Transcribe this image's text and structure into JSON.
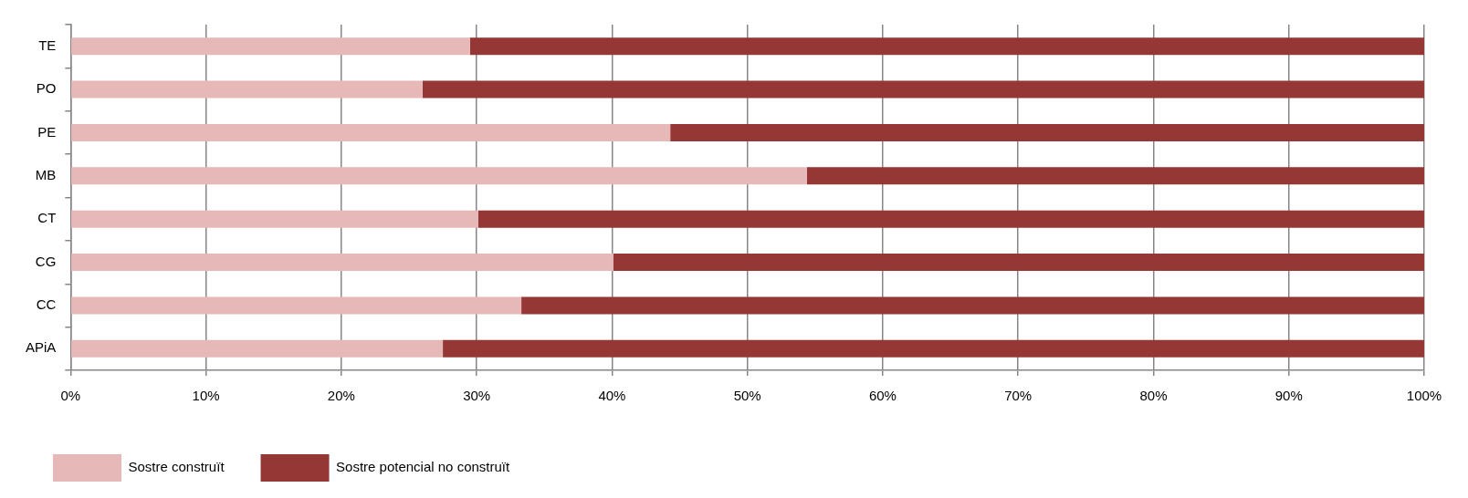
{
  "chart_data": {
    "type": "bar",
    "orientation": "horizontal",
    "stacked": true,
    "categories": [
      "TE",
      "PO",
      "PE",
      "MB",
      "CT",
      "CG",
      "CC",
      "APiA"
    ],
    "series": [
      {
        "name": "Sostre construït",
        "color": "#e6b9b8",
        "values": [
          29.5,
          26.0,
          44.3,
          54.4,
          30.1,
          40.1,
          33.3,
          27.5
        ]
      },
      {
        "name": "Sostre potencial no construït",
        "color": "#953735",
        "values": [
          70.5,
          74.0,
          55.7,
          45.6,
          69.9,
          59.9,
          66.7,
          72.5
        ]
      }
    ],
    "xlim": [
      0,
      100
    ],
    "xticks": [
      {
        "value": 0,
        "label": "0%"
      },
      {
        "value": 10,
        "label": "10%"
      },
      {
        "value": 20,
        "label": "20%"
      },
      {
        "value": 30,
        "label": "30%"
      },
      {
        "value": 40,
        "label": "40%"
      },
      {
        "value": 50,
        "label": "50%"
      },
      {
        "value": 60,
        "label": "60%"
      },
      {
        "value": 70,
        "label": "70%"
      },
      {
        "value": 80,
        "label": "80%"
      },
      {
        "value": 90,
        "label": "90%"
      },
      {
        "value": 100,
        "label": "100%"
      }
    ],
    "grid": "x",
    "legend": "bottom"
  }
}
